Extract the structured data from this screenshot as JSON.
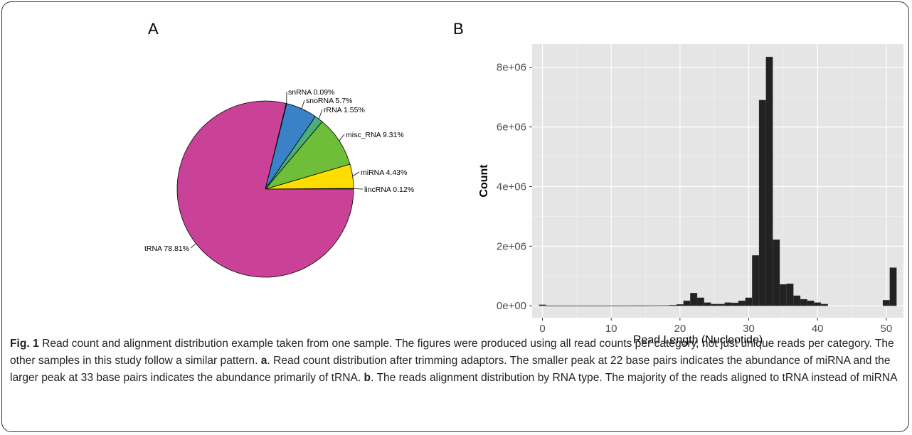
{
  "panel_labels": {
    "a": "A",
    "b": "B"
  },
  "caption": {
    "fig_label": "Fig. 1",
    "title": " Read count and alignment distribution example taken from one sample. The figures were produced using all read counts per category, not just unique reads per category. The other samples in this study follow a similar pattern. ",
    "part_a_label": "a",
    "part_a_text": ". Read count distribution after trimming adaptors. The smaller peak at 22 base pairs indicates the abundance of miRNA and the larger peak at 33 base pairs indicates the abundance primarily of tRNA. ",
    "part_b_label": "b",
    "part_b_text": ". The reads alignment distribution by RNA type. The majority of the reads aligned to tRNA instead of miRNA"
  },
  "chart_data": [
    {
      "type": "pie",
      "start_angle_deg": 0,
      "direction": "counterclockwise",
      "slices": [
        {
          "label": "lincRNA 0.12%",
          "value": 0.12,
          "color": "#c2b06a"
        },
        {
          "label": "miRNA 4.43%",
          "value": 4.43,
          "color": "#ffdd00"
        },
        {
          "label": "misc_RNA 9.31%",
          "value": 9.31,
          "color": "#6fbe3a"
        },
        {
          "label": "rRNA 1.55%",
          "value": 1.55,
          "color": "#4aae78"
        },
        {
          "label": "snoRNA 5.7%",
          "value": 5.7,
          "color": "#3a82c8"
        },
        {
          "label": "snRNA 0.09%",
          "value": 0.09,
          "color": "#2b4f9e"
        },
        {
          "label": "tRNA 78.81%",
          "value": 78.81,
          "color": "#c94297"
        }
      ]
    },
    {
      "type": "bar",
      "xlabel": "Read Length (Nucleotide)",
      "ylabel": "Count",
      "xlim": [
        -1.5,
        52.5
      ],
      "ylim": [
        -400000,
        8780000
      ],
      "x_ticks": [
        0,
        10,
        20,
        30,
        40,
        50
      ],
      "y_ticks": [
        0,
        2000000,
        4000000,
        6000000,
        8000000
      ],
      "y_tick_labels": [
        "0e+00",
        "2e+06",
        "4e+06",
        "6e+06",
        "8e+06"
      ],
      "bar_color": "#222222",
      "panel_background": "#e5e5e5",
      "grid": true,
      "x": [
        0,
        1,
        2,
        3,
        4,
        5,
        6,
        7,
        8,
        9,
        10,
        11,
        12,
        13,
        14,
        15,
        16,
        17,
        18,
        19,
        20,
        21,
        22,
        23,
        24,
        25,
        26,
        27,
        28,
        29,
        30,
        31,
        32,
        33,
        34,
        35,
        36,
        37,
        38,
        39,
        40,
        41,
        42,
        43,
        44,
        45,
        46,
        47,
        48,
        49,
        50,
        51
      ],
      "values": [
        35000,
        5000,
        5000,
        5000,
        5000,
        5000,
        5000,
        5000,
        5000,
        5000,
        6000,
        6000,
        7000,
        7000,
        8000,
        8000,
        10000,
        12000,
        15000,
        25000,
        50000,
        170000,
        430000,
        270000,
        110000,
        60000,
        60000,
        110000,
        100000,
        170000,
        270000,
        1690000,
        6900000,
        8350000,
        2220000,
        720000,
        740000,
        340000,
        220000,
        170000,
        110000,
        60000,
        0,
        0,
        0,
        0,
        0,
        0,
        0,
        0,
        190000,
        1280000
      ]
    }
  ]
}
